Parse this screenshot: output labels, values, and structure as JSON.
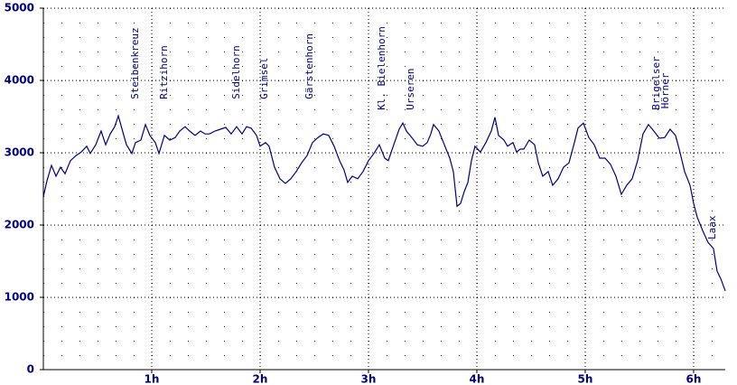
{
  "chart_data": {
    "type": "line",
    "color": "#000080",
    "grid": true,
    "xlim": [
      0,
      6.292
    ],
    "ylim": [
      0,
      5000
    ],
    "yticks": [
      0,
      1000,
      2000,
      3000,
      4000,
      5000
    ],
    "xticks": [
      {
        "value": 1,
        "label": "1h"
      },
      {
        "value": 2,
        "label": "2h"
      },
      {
        "value": 3,
        "label": "3h"
      },
      {
        "value": 4,
        "label": "4h"
      },
      {
        "value": 5,
        "label": "5h"
      },
      {
        "value": 6,
        "label": "6h"
      }
    ],
    "x": [
      0,
      0.033,
      0.075,
      0.117,
      0.158,
      0.2,
      0.25,
      0.3,
      0.35,
      0.4,
      0.433,
      0.483,
      0.533,
      0.575,
      0.617,
      0.658,
      0.692,
      0.742,
      0.767,
      0.817,
      0.85,
      0.9,
      0.942,
      0.983,
      1.033,
      1.067,
      1.117,
      1.167,
      1.217,
      1.258,
      1.308,
      1.35,
      1.4,
      1.45,
      1.492,
      1.533,
      1.583,
      1.633,
      1.683,
      1.733,
      1.783,
      1.833,
      1.875,
      1.917,
      1.967,
      2.0,
      2.05,
      2.083,
      2.133,
      2.183,
      2.233,
      2.283,
      2.333,
      2.383,
      2.433,
      2.483,
      2.533,
      2.583,
      2.633,
      2.683,
      2.733,
      2.775,
      2.808,
      2.85,
      2.9,
      2.95,
      3.0,
      3.05,
      3.1,
      3.15,
      3.183,
      3.233,
      3.283,
      3.317,
      3.35,
      3.4,
      3.45,
      3.5,
      3.542,
      3.575,
      3.6,
      3.65,
      3.7,
      3.75,
      3.783,
      3.817,
      3.85,
      3.883,
      3.917,
      3.95,
      3.983,
      4.033,
      4.083,
      4.133,
      4.167,
      4.2,
      4.25,
      4.283,
      4.333,
      4.367,
      4.4,
      4.433,
      4.483,
      4.533,
      4.567,
      4.608,
      4.658,
      4.7,
      4.75,
      4.8,
      4.85,
      4.9,
      4.933,
      4.983,
      5.033,
      5.083,
      5.133,
      5.183,
      5.233,
      5.283,
      5.333,
      5.383,
      5.433,
      5.483,
      5.533,
      5.583,
      5.633,
      5.683,
      5.733,
      5.783,
      5.833,
      5.867,
      5.917,
      5.967,
      6.0,
      6.033,
      6.083,
      6.133,
      6.183,
      6.217,
      6.25,
      6.292
    ],
    "values": [
      2390,
      2610,
      2825,
      2675,
      2800,
      2710,
      2890,
      2960,
      3010,
      3090,
      2990,
      3110,
      3300,
      3110,
      3260,
      3360,
      3510,
      3240,
      3110,
      2990,
      3140,
      3175,
      3390,
      3240,
      3140,
      2990,
      3240,
      3175,
      3210,
      3300,
      3360,
      3300,
      3240,
      3300,
      3260,
      3260,
      3300,
      3325,
      3350,
      3260,
      3360,
      3260,
      3360,
      3340,
      3240,
      3090,
      3140,
      3090,
      2800,
      2640,
      2575,
      2640,
      2740,
      2860,
      2960,
      3140,
      3210,
      3260,
      3240,
      3090,
      2890,
      2760,
      2590,
      2675,
      2640,
      2740,
      2890,
      2990,
      3110,
      2925,
      2890,
      3110,
      3325,
      3410,
      3300,
      3210,
      3110,
      3090,
      3140,
      3260,
      3390,
      3300,
      3110,
      2925,
      2740,
      2260,
      2300,
      2460,
      2590,
      2890,
      3090,
      3010,
      3140,
      3300,
      3490,
      3240,
      3175,
      3090,
      3140,
      3010,
      3050,
      3050,
      3175,
      3110,
      2860,
      2675,
      2740,
      2550,
      2640,
      2800,
      2860,
      3140,
      3340,
      3410,
      3210,
      3110,
      2925,
      2925,
      2840,
      2675,
      2425,
      2550,
      2640,
      2890,
      3260,
      3390,
      3300,
      3200,
      3210,
      3325,
      3240,
      3050,
      2740,
      2550,
      2300,
      2110,
      1925,
      1760,
      1675,
      1360,
      1260,
      1090
    ],
    "annotations": [
      {
        "text": "Steibenkreuz",
        "x": 0.85,
        "y": 3740
      },
      {
        "text": "Ritzihorn",
        "x": 1.117,
        "y": 3740
      },
      {
        "text": "Sidelhorn",
        "x": 1.783,
        "y": 3740
      },
      {
        "text": "Grimsel",
        "x": 2.042,
        "y": 3740
      },
      {
        "text": "Gärstenhorn",
        "x": 2.458,
        "y": 3740
      },
      {
        "text": "Kl. Bielenhorn",
        "x": 3.125,
        "y": 3590
      },
      {
        "text": "Urseren",
        "x": 3.392,
        "y": 3590
      },
      {
        "text": "Brigelser",
        "x": 5.658,
        "y": 3590
      },
      {
        "text": "Hörner",
        "x": 5.742,
        "y": 3610
      },
      {
        "text": "Laax",
        "x": 6.175,
        "y": 1800
      }
    ]
  }
}
